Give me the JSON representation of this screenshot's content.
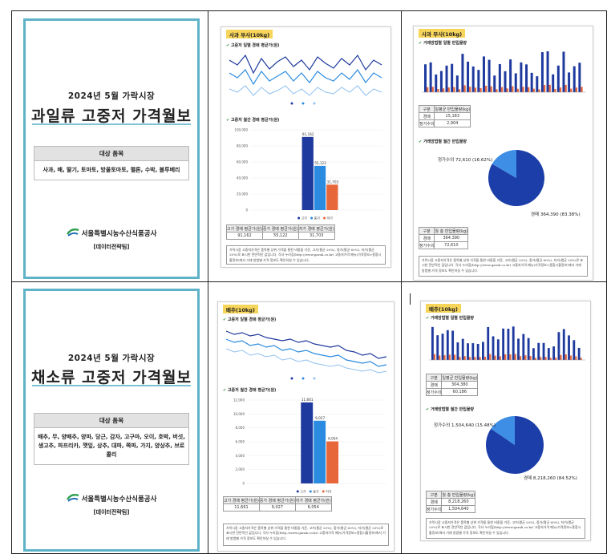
{
  "colors": {
    "cover_border": "#5fb3c9",
    "navy": "#1f3a9e",
    "blue": "#2b8be0",
    "orange": "#e8673a",
    "ribbon": "#f7d45a",
    "pie_dark": "#1c3ea8",
    "pie_light": "#3f8ee6"
  },
  "fruit": {
    "cover": {
      "year_line": "2024년 5월 가락시장",
      "title": "과일류 고중저 가격월보",
      "items_header": "대상 품목",
      "items": "사과, 배, 딸기, 토마토, 방울토마토, 멜론, 수박, 블루베리",
      "org": "서울특별시농수산식품공사",
      "team": "[데이터전략팀]"
    },
    "price_page": {
      "ribbon": "사과 부사(10kg)",
      "daily_title": "고중저 일별 경매 평균가(원)",
      "monthly_title": "고중저 월간 경매 평균가(원)",
      "table_headers": [
        "고가 경매 평균가(원)",
        "중가 경매 평균가(원)",
        "저가 경매 평균가(원)"
      ],
      "table_values": [
        "91,162",
        "55,122",
        "31,703"
      ],
      "bar_labels": [
        "91,162",
        "55,122",
        "31,703"
      ],
      "y_ticks": [
        "100,000",
        "80,000",
        "60,000",
        "40,000",
        "20,000",
        "0"
      ],
      "legend": [
        "고가",
        "중가",
        "저가"
      ]
    },
    "volume_page": {
      "ribbon": "사과 부사(10kg)",
      "daily_title": "거래방법별 일별 반입물량",
      "monthly_title": "거래방법별 월간 반입물량",
      "t1_headers": [
        "구분",
        "일평균 반입물량(kg)"
      ],
      "t1_rows": [
        [
          "경매",
          "15,183"
        ],
        [
          "정가수의",
          "2,904"
        ]
      ],
      "pie_labels": [
        "정가수의 72,610 (16.62%)",
        "경매 364,390 (83.38%)"
      ],
      "pie_share": [
        83.38,
        16.62
      ],
      "t2_headers": [
        "구분",
        "월 총 반입물량(kg)"
      ],
      "t2_rows": [
        [
          "경매",
          "364,390"
        ],
        [
          "정가수의",
          "72,610"
        ]
      ]
    }
  },
  "veg": {
    "cover": {
      "year_line": "2024년 5월 가락시장",
      "title": "채소류 고중저 가격월보",
      "items_header": "대상 품목",
      "items": "배추, 무, 양배추, 양파, 당근, 감자, 고구마, 오이, 호박, 버섯, 생고추, 파프리카, 깻잎, 상추, 대파, 쪽파, 가지, 양상추, 브로콜리",
      "org": "서울특별시농수산식품공사",
      "team": "[데이터전략팀]"
    },
    "price_page": {
      "ribbon": "배추(10kg)",
      "daily_title": "고중저 일별 경매 평균가(원)",
      "monthly_title": "고중저 월간 경매 평균가(원)",
      "table_headers": [
        "고가 경매 평균가(원)",
        "중가 경매 평균가(원)",
        "저가 경매 평균가(원)"
      ],
      "table_values": [
        "11,661",
        "9,027",
        "6,054"
      ],
      "bar_labels": [
        "11,661",
        "9,027",
        "6,054"
      ],
      "y_ticks": [
        "12,000",
        "10,000",
        "8,000",
        "6,000",
        "4,000",
        "2,000",
        "0"
      ],
      "legend": [
        "고가",
        "중가",
        "저가"
      ]
    },
    "volume_page": {
      "ribbon": "배추(10kg)",
      "daily_title": "거래방법별 일별 반입물량",
      "monthly_title": "거래방법별 월간 반입물량",
      "t1_headers": [
        "구분",
        "일평균 반입물량(kg)"
      ],
      "t1_rows": [
        [
          "경매",
          "304,380"
        ],
        [
          "정가수의",
          "60,186"
        ]
      ],
      "pie_labels": [
        "정가수의 1,504,640 (15.48%)",
        "경매 8,218,260 (84.52%)"
      ],
      "pie_share": [
        84.52,
        15.48
      ],
      "t2_headers": [
        "구분",
        "월 총 반입물량(kg)"
      ],
      "t2_rows": [
        [
          "경매",
          "8,218,260"
        ],
        [
          "정가수의",
          "1,504,640"
        ]
      ]
    }
  },
  "note_text": "가락시장 고중저가격은 품목별 상위 가격을 통한 비중을 기준, 고가(평균 20%), 중가(평균 60%), 저가(평균 20%)로 표시한 전반적인 값입니다. 각사 누리집(http://www.garak.co.kr) 고중저가격 메뉴(가격정보>종합시황정보)에서 거래 방법별 가격 정보도 확인하실 수 있습니다."
}
